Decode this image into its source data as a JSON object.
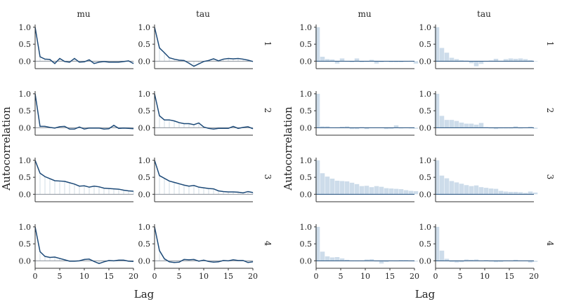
{
  "chart_data": [
    {
      "type": "line",
      "title": "",
      "xlabel": "Lag",
      "ylabel": "Autocorrelation",
      "columns": [
        "mu",
        "tau"
      ],
      "rows": [
        "1",
        "2",
        "3",
        "4"
      ],
      "xlim": [
        0,
        20
      ],
      "ylim": [
        -0.2,
        1.0
      ],
      "xticks": [
        0,
        5,
        10,
        15,
        20
      ],
      "yticks": [
        0.0,
        0.5,
        1.0
      ],
      "line_color": "#1d4a78",
      "stem_color": "#d2dce6",
      "panels": [
        {
          "column": "mu",
          "row": "1",
          "values": [
            1.0,
            0.13,
            0.06,
            0.05,
            -0.07,
            0.08,
            -0.01,
            -0.03,
            0.08,
            -0.03,
            -0.02,
            0.04,
            -0.07,
            -0.03,
            -0.01,
            -0.03,
            -0.03,
            -0.03,
            -0.01,
            0.01,
            -0.07
          ]
        },
        {
          "column": "tau",
          "row": "1",
          "values": [
            1.0,
            0.39,
            0.25,
            0.1,
            0.06,
            0.03,
            0.02,
            -0.06,
            -0.15,
            -0.08,
            -0.01,
            0.02,
            0.07,
            0.01,
            0.06,
            0.08,
            0.07,
            0.08,
            0.06,
            0.03,
            -0.01
          ]
        },
        {
          "column": "mu",
          "row": "2",
          "values": [
            1.0,
            0.04,
            0.04,
            0.01,
            -0.01,
            0.03,
            0.04,
            -0.04,
            -0.04,
            0.02,
            -0.04,
            -0.01,
            -0.01,
            -0.01,
            -0.04,
            -0.03,
            0.07,
            -0.02,
            -0.01,
            -0.02,
            -0.03
          ]
        },
        {
          "column": "tau",
          "row": "2",
          "values": [
            1.0,
            0.35,
            0.23,
            0.23,
            0.2,
            0.15,
            0.12,
            0.12,
            0.09,
            0.14,
            0.02,
            -0.02,
            -0.04,
            -0.02,
            -0.02,
            -0.02,
            0.04,
            -0.02,
            0.01,
            0.03,
            -0.03
          ]
        },
        {
          "column": "mu",
          "row": "3",
          "values": [
            1.0,
            0.62,
            0.52,
            0.46,
            0.4,
            0.39,
            0.38,
            0.34,
            0.3,
            0.24,
            0.25,
            0.21,
            0.24,
            0.22,
            0.18,
            0.17,
            0.16,
            0.15,
            0.12,
            0.1,
            0.09
          ]
        },
        {
          "column": "tau",
          "row": "3",
          "values": [
            1.0,
            0.55,
            0.47,
            0.39,
            0.35,
            0.31,
            0.27,
            0.24,
            0.26,
            0.21,
            0.19,
            0.17,
            0.16,
            0.1,
            0.08,
            0.07,
            0.07,
            0.06,
            0.04,
            0.08,
            0.05
          ]
        },
        {
          "column": "mu",
          "row": "4",
          "values": [
            1.0,
            0.27,
            0.13,
            0.1,
            0.11,
            0.07,
            0.03,
            -0.01,
            -0.01,
            0.0,
            0.04,
            0.05,
            -0.02,
            -0.08,
            -0.03,
            0.01,
            0.0,
            0.02,
            0.02,
            -0.01,
            -0.02
          ]
        },
        {
          "column": "tau",
          "row": "4",
          "values": [
            1.0,
            0.3,
            0.06,
            -0.03,
            -0.05,
            -0.04,
            0.04,
            0.03,
            0.04,
            -0.01,
            0.02,
            -0.02,
            -0.04,
            -0.03,
            0.01,
            0.0,
            0.03,
            0.01,
            0.01,
            -0.05,
            -0.03
          ]
        }
      ]
    },
    {
      "type": "bar",
      "title": "",
      "xlabel": "Lag",
      "ylabel": "Autocorrelation",
      "columns": [
        "mu",
        "tau"
      ],
      "rows": [
        "1",
        "2",
        "3",
        "4"
      ],
      "xlim": [
        0,
        20
      ],
      "ylim": [
        -0.2,
        1.0
      ],
      "xticks": [
        0,
        5,
        10,
        15,
        20
      ],
      "yticks": [
        0.0,
        0.5,
        1.0
      ],
      "bar_color": "#cddcea",
      "panels": [
        {
          "column": "mu",
          "row": "1",
          "values": [
            1.0,
            0.13,
            0.06,
            0.05,
            -0.07,
            0.08,
            -0.01,
            -0.03,
            0.08,
            -0.03,
            -0.02,
            0.04,
            -0.07,
            -0.03,
            -0.01,
            -0.03,
            -0.03,
            -0.03,
            -0.01,
            0.01,
            -0.07
          ]
        },
        {
          "column": "tau",
          "row": "1",
          "values": [
            1.0,
            0.39,
            0.25,
            0.1,
            0.06,
            0.03,
            0.02,
            -0.06,
            -0.15,
            -0.08,
            -0.01,
            0.02,
            0.07,
            0.01,
            0.06,
            0.08,
            0.07,
            0.08,
            0.06,
            0.03,
            -0.01
          ]
        },
        {
          "column": "mu",
          "row": "2",
          "values": [
            1.0,
            0.04,
            0.04,
            0.01,
            -0.01,
            0.03,
            0.04,
            -0.04,
            -0.04,
            0.02,
            -0.04,
            -0.01,
            -0.01,
            -0.01,
            -0.04,
            -0.03,
            0.07,
            -0.02,
            -0.01,
            -0.02,
            -0.03
          ]
        },
        {
          "column": "tau",
          "row": "2",
          "values": [
            1.0,
            0.35,
            0.23,
            0.23,
            0.2,
            0.15,
            0.12,
            0.12,
            0.09,
            0.14,
            0.02,
            -0.02,
            -0.04,
            -0.02,
            -0.02,
            -0.02,
            0.04,
            -0.02,
            0.01,
            0.03,
            -0.03
          ]
        },
        {
          "column": "mu",
          "row": "3",
          "values": [
            1.0,
            0.62,
            0.52,
            0.46,
            0.4,
            0.39,
            0.38,
            0.34,
            0.3,
            0.24,
            0.25,
            0.21,
            0.24,
            0.22,
            0.18,
            0.17,
            0.16,
            0.15,
            0.12,
            0.1,
            0.09
          ]
        },
        {
          "column": "tau",
          "row": "3",
          "values": [
            1.0,
            0.55,
            0.47,
            0.39,
            0.35,
            0.31,
            0.27,
            0.24,
            0.26,
            0.21,
            0.19,
            0.17,
            0.16,
            0.1,
            0.08,
            0.07,
            0.07,
            0.06,
            0.04,
            0.08,
            0.05
          ]
        },
        {
          "column": "mu",
          "row": "4",
          "values": [
            1.0,
            0.27,
            0.13,
            0.1,
            0.11,
            0.07,
            0.03,
            -0.01,
            -0.01,
            0.0,
            0.04,
            0.05,
            -0.02,
            -0.08,
            -0.03,
            0.01,
            0.0,
            0.02,
            0.02,
            -0.01,
            -0.02
          ]
        },
        {
          "column": "tau",
          "row": "4",
          "values": [
            1.0,
            0.3,
            0.06,
            -0.03,
            -0.05,
            -0.04,
            0.04,
            0.03,
            0.04,
            -0.01,
            0.02,
            -0.02,
            -0.04,
            -0.03,
            0.01,
            0.0,
            0.03,
            0.01,
            0.01,
            -0.05,
            -0.03
          ]
        }
      ]
    }
  ]
}
